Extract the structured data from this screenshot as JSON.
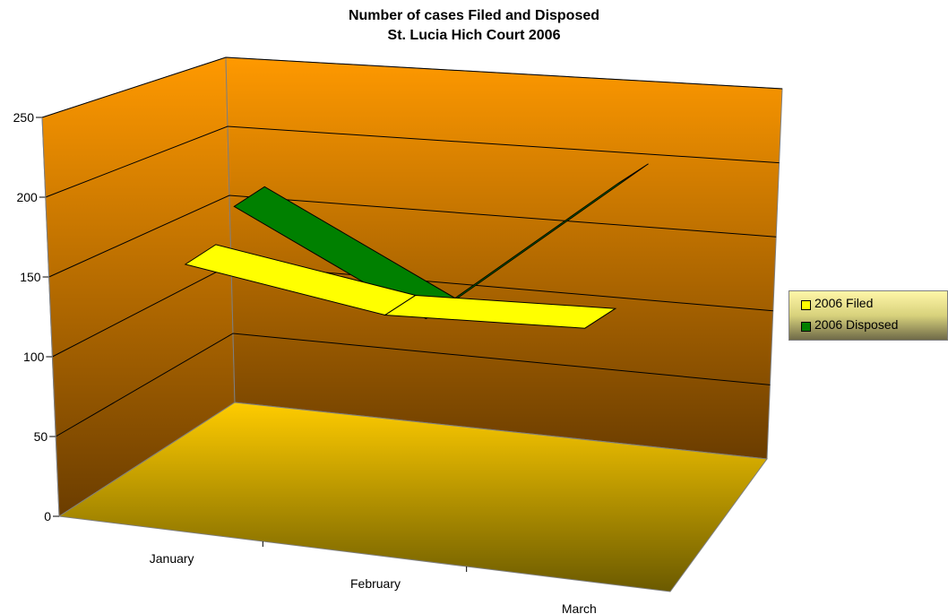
{
  "chart_data": {
    "type": "line",
    "title_line_1": "Number of cases Filed and Disposed",
    "title_line_2": "St. Lucia Hich Court 2006",
    "categories": [
      "January",
      "February",
      "March"
    ],
    "y_ticks": [
      "0",
      "50",
      "100",
      "150",
      "200",
      "250"
    ],
    "ylim": [
      0,
      250
    ],
    "grid": true,
    "legend_position": "right",
    "series": [
      {
        "name": "2006 Filed",
        "values": [
          158,
          141,
          148
        ],
        "color": "#ffff00"
      },
      {
        "name": "2006 Disposed",
        "values": [
          180,
          120,
          225
        ],
        "color": "#008000"
      }
    ],
    "colors": {
      "wall_top": "#ff9900",
      "wall_bottom": "#6b3d00",
      "floor_top": "#ffcc00",
      "floor_bottom": "#6b5a00"
    }
  }
}
